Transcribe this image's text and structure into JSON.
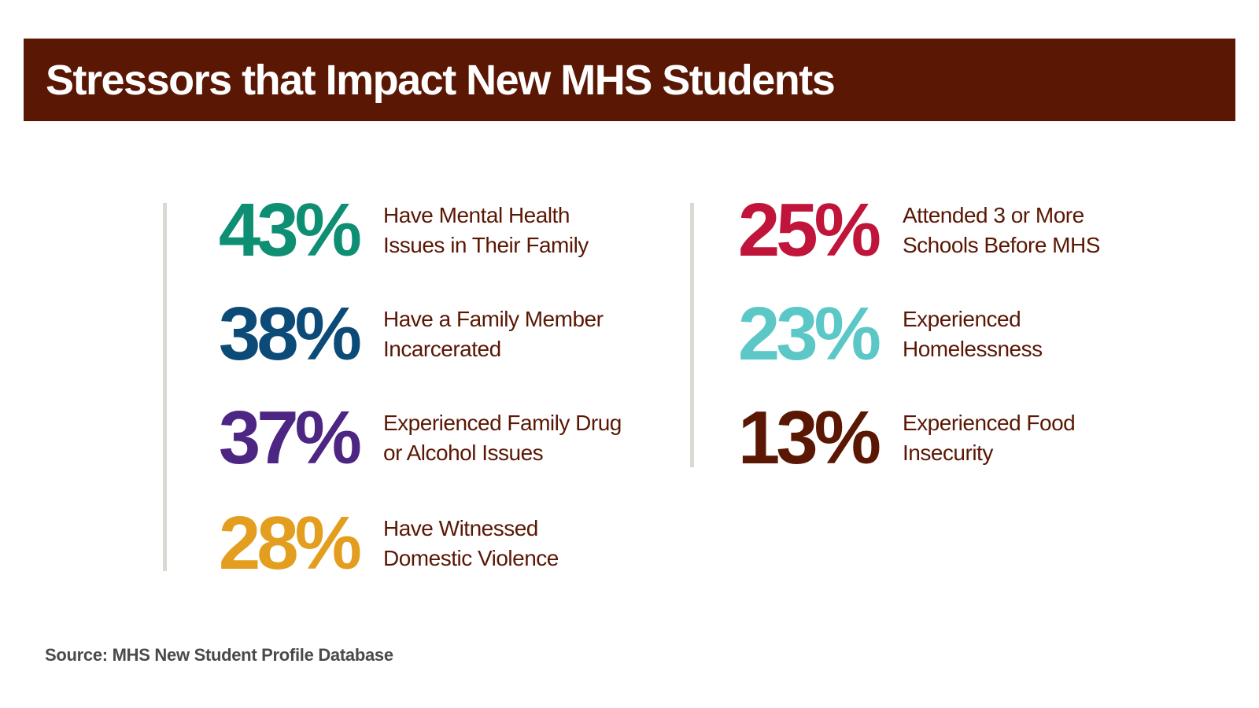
{
  "chart_data": {
    "type": "table",
    "title": "Stressors that Impact New MHS Students",
    "unit": "%",
    "items": [
      {
        "value": 43,
        "value_label": "43%",
        "label": "Have Mental Health\nIssues in Their Family",
        "color": "#0e8f74"
      },
      {
        "value": 38,
        "value_label": "38%",
        "label": "Have a Family Member\nIncarcerated",
        "color": "#0c4a78"
      },
      {
        "value": 37,
        "value_label": "37%",
        "label": "Experienced Family Drug\nor Alcohol Issues",
        "color": "#4c2682"
      },
      {
        "value": 28,
        "value_label": "28%",
        "label": "Have Witnessed\nDomestic Violence",
        "color": "#e39e1f"
      },
      {
        "value": 25,
        "value_label": "25%",
        "label": "Attended 3 or More\nSchools Before MHS",
        "color": "#c0143a"
      },
      {
        "value": 23,
        "value_label": "23%",
        "label": "Experienced\nHomelessness",
        "color": "#5bc8c7"
      },
      {
        "value": 13,
        "value_label": "13%",
        "label": "Experienced Food\nInsecurity",
        "color": "#5a1704"
      }
    ],
    "source": "Source: MHS New Student Profile Database"
  },
  "colors": {
    "title_bar": "#5a1704",
    "label_text": "#5a1704",
    "divider": "#dcd8d2"
  }
}
